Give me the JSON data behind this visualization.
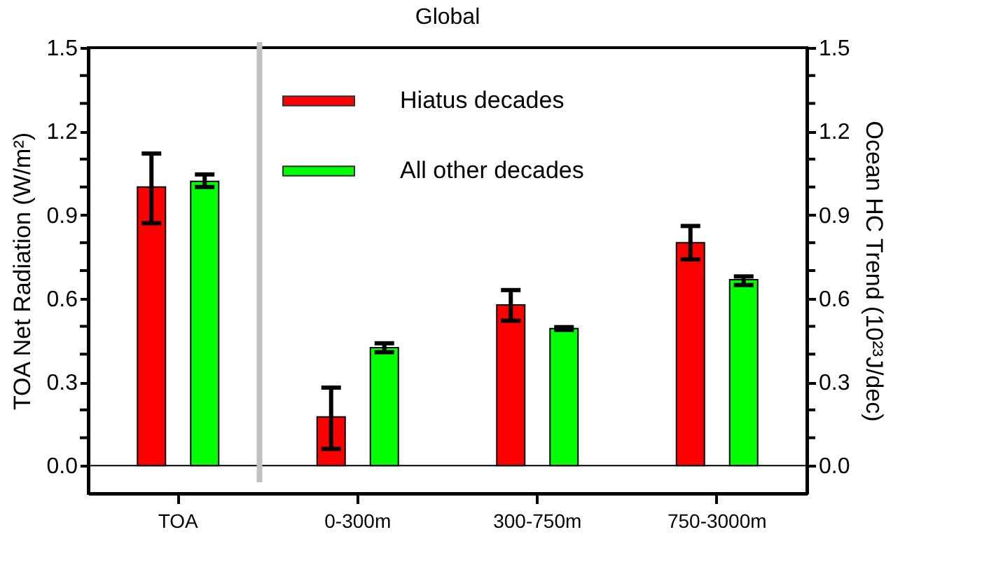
{
  "chart_data": {
    "type": "bar",
    "title": "Global",
    "ylabel": "TOA Net Radiation (W/m²)",
    "y2label": "Ocean HC Trend (10²³J/dec)",
    "categories": [
      "TOA",
      "0-300m",
      "300-750m",
      "750-3000m"
    ],
    "series": [
      {
        "name": "Hiatus decades",
        "color": "#ff0000",
        "values": [
          1.0,
          0.175,
          0.577,
          0.8
        ],
        "errors": [
          [
            0.87,
            1.12
          ],
          [
            0.06,
            0.28
          ],
          [
            0.52,
            0.63
          ],
          [
            0.74,
            0.86
          ]
        ]
      },
      {
        "name": "All other decades",
        "color": "#00ff00",
        "values": [
          1.02,
          0.423,
          0.492,
          0.667
        ],
        "errors": [
          [
            1.0,
            1.045
          ],
          [
            0.407,
            0.439
          ],
          [
            0.487,
            0.497
          ],
          [
            0.648,
            0.679
          ]
        ]
      }
    ],
    "ylim": [
      -0.1,
      1.5
    ],
    "yticks": [
      {
        "value": 0,
        "label": "0.0"
      },
      {
        "value": 0.1,
        "label": null
      },
      {
        "value": 0.2,
        "label": null
      },
      {
        "value": 0.3,
        "label": "0.3"
      },
      {
        "value": 0.4,
        "label": null
      },
      {
        "value": 0.5,
        "label": null
      },
      {
        "value": 0.6,
        "label": "0.6"
      },
      {
        "value": 0.7,
        "label": null
      },
      {
        "value": 0.8,
        "label": null
      },
      {
        "value": 0.9,
        "label": "0.9"
      },
      {
        "value": 1.0,
        "label": null
      },
      {
        "value": 1.1,
        "label": null
      },
      {
        "value": 1.2,
        "label": "1.2"
      },
      {
        "value": 1.3,
        "label": null
      },
      {
        "value": 1.4,
        "label": null
      },
      {
        "value": 1.5,
        "label": "1.5"
      }
    ],
    "y2lim": [
      -0.1,
      1.5
    ],
    "y2ticks": [
      {
        "value": 0,
        "label": "0.0"
      },
      {
        "value": 0.1,
        "label": null
      },
      {
        "value": 0.2,
        "label": null
      },
      {
        "value": 0.3,
        "label": "0.3"
      },
      {
        "value": 0.4,
        "label": null
      },
      {
        "value": 0.5,
        "label": null
      },
      {
        "value": 0.6,
        "label": "0.6"
      },
      {
        "value": 0.7,
        "label": null
      },
      {
        "value": 0.8,
        "label": null
      },
      {
        "value": 0.9,
        "label": "0.9"
      },
      {
        "value": 1.0,
        "label": null
      },
      {
        "value": 1.1,
        "label": null
      },
      {
        "value": 1.2,
        "label": "1.2"
      },
      {
        "value": 1.3,
        "label": null
      },
      {
        "value": 1.4,
        "label": null
      },
      {
        "value": 1.5,
        "label": "1.5"
      }
    ],
    "ref_lines": [
      {
        "axis": "y",
        "value": 0,
        "color": "#000000"
      }
    ],
    "legend": "top",
    "grid": false
  }
}
